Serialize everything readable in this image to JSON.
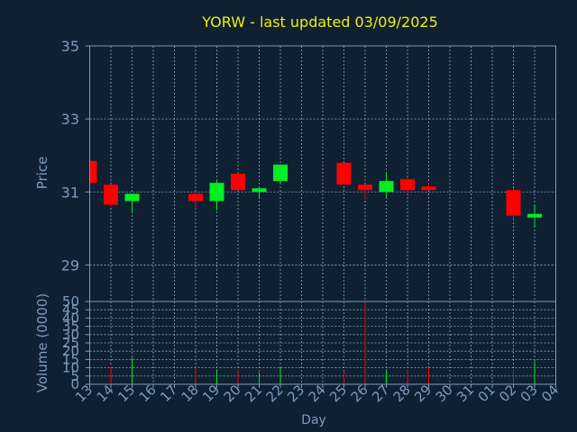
{
  "chart_data": {
    "type": "candlestick",
    "title": "YORW - last updated 03/09/2025",
    "xlabel": "Day",
    "ylabel": "Price",
    "volume_label": "Volume (0000)",
    "x_tick_labels": [
      "13",
      "14",
      "15",
      "16",
      "17",
      "18",
      "19",
      "20",
      "21",
      "22",
      "23",
      "24",
      "25",
      "26",
      "27",
      "28",
      "29",
      "30",
      "31",
      "01",
      "02",
      "03",
      "04"
    ],
    "price_ticks": [
      29,
      31,
      33,
      35
    ],
    "price_range": [
      28,
      35
    ],
    "volume_ticks": [
      0,
      5,
      10,
      15,
      20,
      25,
      30,
      35,
      40,
      45,
      50
    ],
    "volume_range": [
      0,
      50
    ],
    "grid": true,
    "colors": {
      "background": "#0f2033",
      "axis": "#7f9ab8",
      "grid": "#8fa6c0",
      "title": "#f0f000",
      "up": "#00ee22",
      "down": "#ff0000"
    },
    "candles": [
      {
        "x": 0,
        "open": 31.85,
        "high": 31.85,
        "low": 31.25,
        "close": 31.25
      },
      {
        "x": 1,
        "open": 31.2,
        "high": 31.2,
        "low": 30.6,
        "close": 30.65
      },
      {
        "x": 2,
        "open": 30.75,
        "high": 30.95,
        "low": 30.45,
        "close": 30.95
      },
      {
        "x": 5,
        "open": 30.95,
        "high": 30.95,
        "low": 30.55,
        "close": 30.75
      },
      {
        "x": 6,
        "open": 30.75,
        "high": 31.3,
        "low": 30.5,
        "close": 31.25
      },
      {
        "x": 7,
        "open": 31.5,
        "high": 31.5,
        "low": 31.05,
        "close": 31.05
      },
      {
        "x": 8,
        "open": 31.0,
        "high": 31.1,
        "low": 30.85,
        "close": 31.1
      },
      {
        "x": 9,
        "open": 31.3,
        "high": 31.75,
        "low": 31.25,
        "close": 31.75
      },
      {
        "x": 12,
        "open": 31.8,
        "high": 31.8,
        "low": 31.2,
        "close": 31.2
      },
      {
        "x": 13,
        "open": 31.2,
        "high": 31.2,
        "low": 30.8,
        "close": 31.05
      },
      {
        "x": 14,
        "open": 31.0,
        "high": 31.5,
        "low": 30.85,
        "close": 31.3
      },
      {
        "x": 15,
        "open": 31.35,
        "high": 31.4,
        "low": 30.95,
        "close": 31.05
      },
      {
        "x": 16,
        "open": 31.15,
        "high": 31.25,
        "low": 31.05,
        "close": 31.05
      },
      {
        "x": 20,
        "open": 31.05,
        "high": 31.1,
        "low": 30.25,
        "close": 30.35
      },
      {
        "x": 21,
        "open": 30.3,
        "high": 30.65,
        "low": 30.05,
        "close": 30.4
      }
    ],
    "volumes": [
      {
        "x": 1,
        "value": 11,
        "dir": "down"
      },
      {
        "x": 2,
        "value": 16,
        "dir": "up"
      },
      {
        "x": 5,
        "value": 10,
        "dir": "down"
      },
      {
        "x": 6,
        "value": 9,
        "dir": "up"
      },
      {
        "x": 7,
        "value": 9,
        "dir": "down"
      },
      {
        "x": 8,
        "value": 7,
        "dir": "up"
      },
      {
        "x": 9,
        "value": 10,
        "dir": "up"
      },
      {
        "x": 12,
        "value": 8,
        "dir": "down"
      },
      {
        "x": 13,
        "value": 50,
        "dir": "down"
      },
      {
        "x": 14,
        "value": 9,
        "dir": "up"
      },
      {
        "x": 15,
        "value": 9,
        "dir": "down"
      },
      {
        "x": 16,
        "value": 10,
        "dir": "down"
      },
      {
        "x": 20,
        "value": 9,
        "dir": "down"
      },
      {
        "x": 21,
        "value": 14,
        "dir": "up"
      }
    ]
  }
}
